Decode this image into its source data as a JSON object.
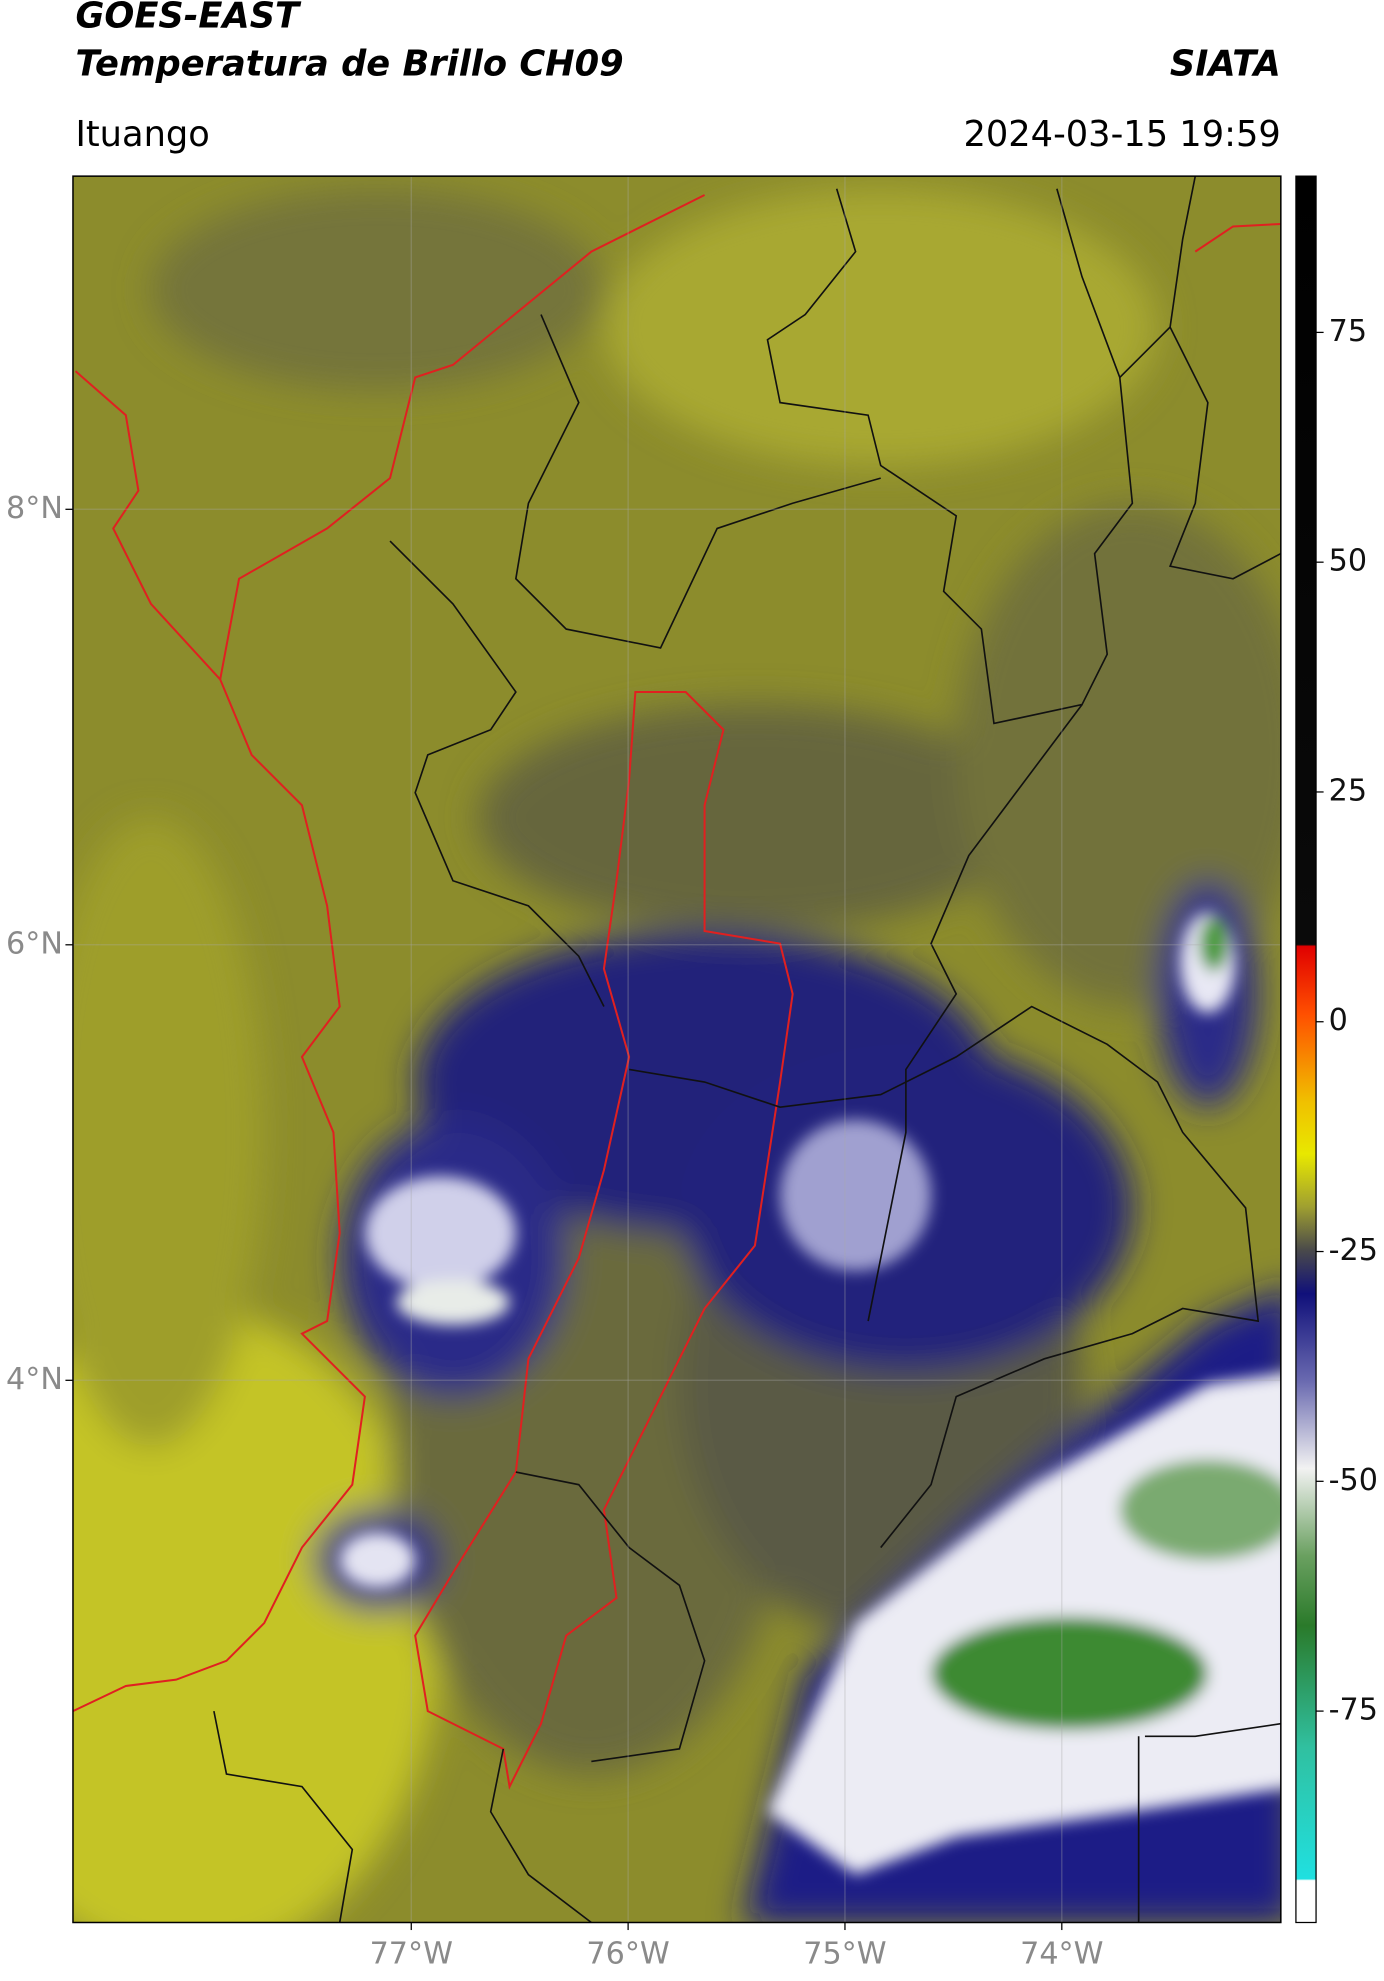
{
  "header": {
    "title": "GOES-EAST",
    "subtitle": "Temperatura de Brillo CH09",
    "agency": "SIATA",
    "location": "Ituango",
    "timestamp": "2024-03-15 19:59"
  },
  "map": {
    "latlim": [
      1.51,
      9.53
    ],
    "lonlim": [
      -78.56,
      -72.99
    ],
    "lat_ticks": [
      {
        "value": 8,
        "label": "8°N"
      },
      {
        "value": 6,
        "label": "6°N"
      },
      {
        "value": 4,
        "label": "4°N"
      }
    ],
    "lon_ticks": [
      {
        "value": -77,
        "label": "77°W"
      },
      {
        "value": -76,
        "label": "76°W"
      },
      {
        "value": -75,
        "label": "75°W"
      },
      {
        "value": -74,
        "label": "74°W"
      }
    ]
  },
  "colorbar": {
    "lim": [
      -98,
      92
    ],
    "ticks": [
      75,
      50,
      25,
      0,
      -25,
      -50,
      -75
    ]
  }
}
